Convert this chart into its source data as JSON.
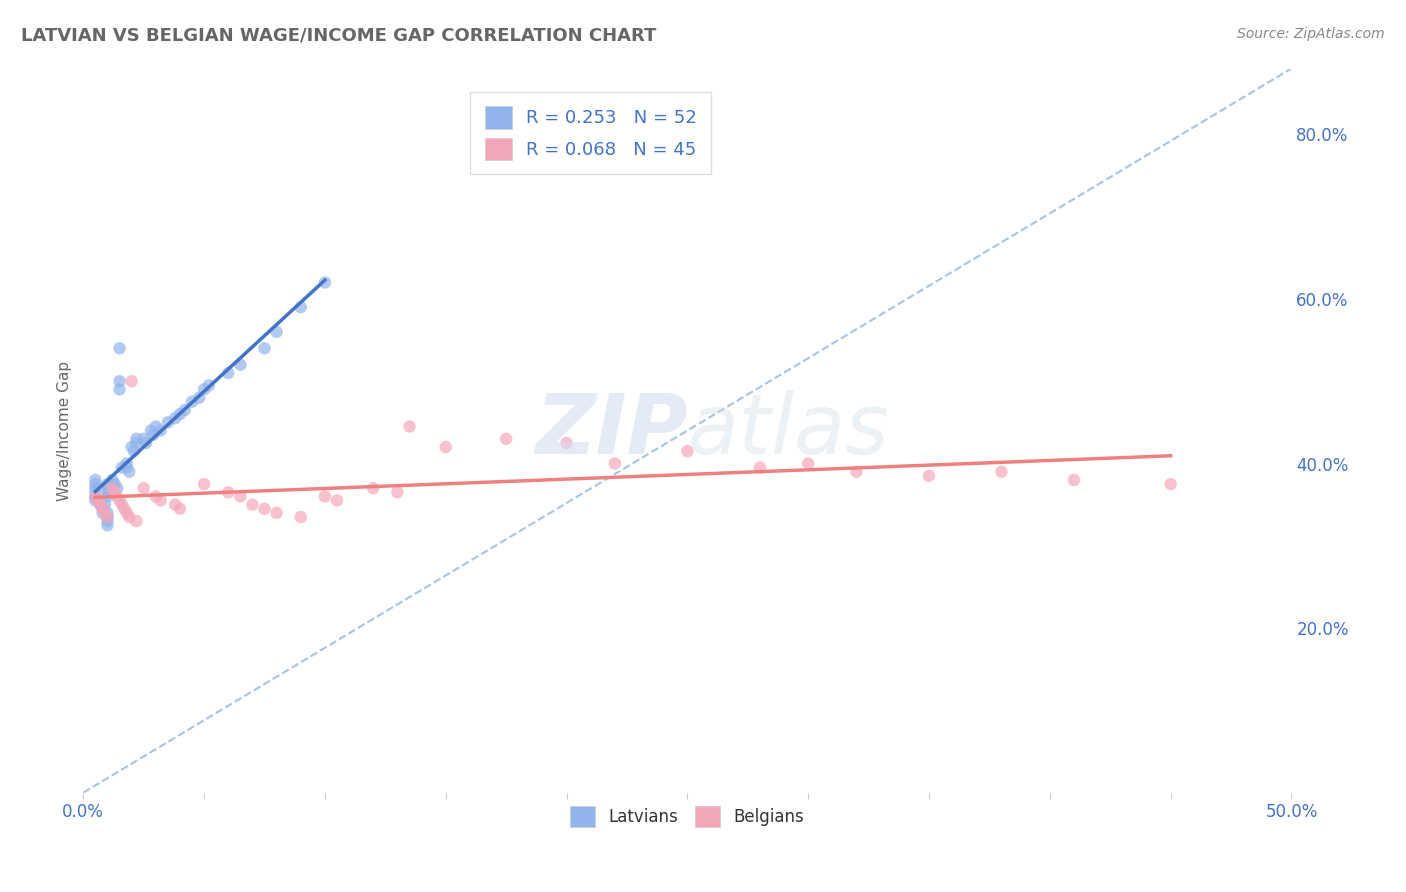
{
  "title": "LATVIAN VS BELGIAN WAGE/INCOME GAP CORRELATION CHART",
  "source_text": "Source: ZipAtlas.com",
  "ylabel": "Wage/Income Gap",
  "xlim": [
    0.0,
    0.5
  ],
  "ylim": [
    0.0,
    0.88
  ],
  "x_ticks": [
    0.0,
    0.05,
    0.1,
    0.15,
    0.2,
    0.25,
    0.3,
    0.35,
    0.4,
    0.45,
    0.5
  ],
  "y_ticks_right": [
    0.2,
    0.4,
    0.6,
    0.8
  ],
  "y_tick_labels_right": [
    "20.0%",
    "40.0%",
    "60.0%",
    "80.0%"
  ],
  "latvian_color": "#92b4ec",
  "belgian_color": "#f4a7b9",
  "latvian_line_color": "#4472c4",
  "belgian_line_color": "#f08080",
  "diagonal_color": "#a8c4e0",
  "background_color": "#ffffff",
  "grid_color": "#e8e8e8",
  "legend_R_latvian": "0.253",
  "legend_N_latvian": "52",
  "legend_R_belgian": "0.068",
  "legend_N_belgian": "45",
  "latvian_x": [
    0.005,
    0.005,
    0.005,
    0.005,
    0.005,
    0.005,
    0.007,
    0.008,
    0.008,
    0.009,
    0.01,
    0.01,
    0.01,
    0.01,
    0.01,
    0.01,
    0.01,
    0.01,
    0.012,
    0.013,
    0.014,
    0.015,
    0.015,
    0.015,
    0.016,
    0.018,
    0.018,
    0.019,
    0.02,
    0.021,
    0.022,
    0.022,
    0.025,
    0.026,
    0.028,
    0.029,
    0.03,
    0.032,
    0.035,
    0.038,
    0.04,
    0.042,
    0.045,
    0.048,
    0.05,
    0.052,
    0.06,
    0.065,
    0.075,
    0.08,
    0.09,
    0.1
  ],
  "latvian_y": [
    0.355,
    0.36,
    0.365,
    0.37,
    0.375,
    0.38,
    0.35,
    0.34,
    0.345,
    0.35,
    0.36,
    0.365,
    0.37,
    0.375,
    0.34,
    0.335,
    0.33,
    0.325,
    0.38,
    0.375,
    0.37,
    0.54,
    0.5,
    0.49,
    0.395,
    0.4,
    0.395,
    0.39,
    0.42,
    0.415,
    0.425,
    0.43,
    0.43,
    0.425,
    0.44,
    0.435,
    0.445,
    0.44,
    0.45,
    0.455,
    0.46,
    0.465,
    0.475,
    0.48,
    0.49,
    0.495,
    0.51,
    0.52,
    0.54,
    0.56,
    0.59,
    0.62
  ],
  "belgian_x": [
    0.005,
    0.006,
    0.007,
    0.008,
    0.009,
    0.01,
    0.012,
    0.013,
    0.014,
    0.015,
    0.016,
    0.017,
    0.018,
    0.019,
    0.02,
    0.022,
    0.025,
    0.03,
    0.032,
    0.038,
    0.04,
    0.05,
    0.06,
    0.065,
    0.07,
    0.075,
    0.08,
    0.09,
    0.1,
    0.105,
    0.12,
    0.13,
    0.135,
    0.15,
    0.175,
    0.2,
    0.22,
    0.25,
    0.28,
    0.3,
    0.32,
    0.35,
    0.38,
    0.41,
    0.45
  ],
  "belgian_y": [
    0.36,
    0.355,
    0.35,
    0.345,
    0.34,
    0.335,
    0.37,
    0.365,
    0.36,
    0.355,
    0.35,
    0.345,
    0.34,
    0.335,
    0.5,
    0.33,
    0.37,
    0.36,
    0.355,
    0.35,
    0.345,
    0.375,
    0.365,
    0.36,
    0.35,
    0.345,
    0.34,
    0.335,
    0.36,
    0.355,
    0.37,
    0.365,
    0.445,
    0.42,
    0.43,
    0.425,
    0.4,
    0.415,
    0.395,
    0.4,
    0.39,
    0.385,
    0.39,
    0.38,
    0.375
  ]
}
